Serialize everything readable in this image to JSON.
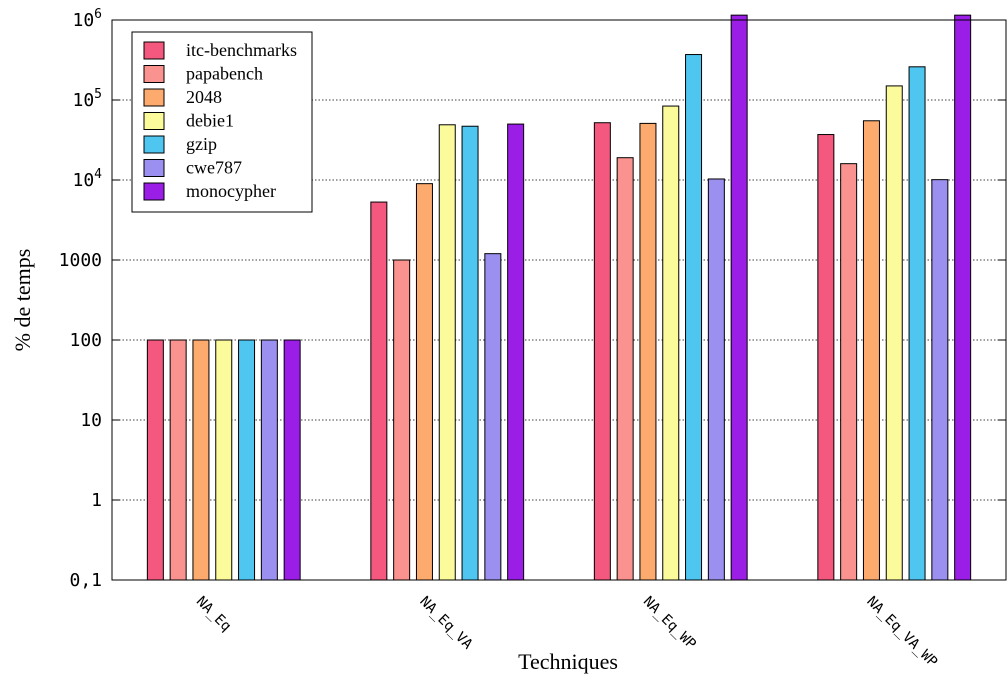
{
  "chart_data": {
    "type": "bar",
    "xlabel": "Techniques",
    "ylabel": "% de temps",
    "yscale": "log",
    "ylim": [
      0.1,
      1000000
    ],
    "yticks": [
      {
        "value": 0.1,
        "label": "0,1"
      },
      {
        "value": 1,
        "label": "1"
      },
      {
        "value": 10,
        "label": "10"
      },
      {
        "value": 100,
        "label": "100"
      },
      {
        "value": 1000,
        "label": "1000"
      },
      {
        "value": 10000,
        "label": "10",
        "exp": "4"
      },
      {
        "value": 100000,
        "label": "10",
        "exp": "5"
      },
      {
        "value": 1000000,
        "label": "10",
        "exp": "6"
      }
    ],
    "grid": "horizontal dotted",
    "legend_position": "top-left",
    "categories": [
      "NA_Eq",
      "NA_Eq_VA",
      "NA_Eq_WP",
      "NA_Eq_VA_WP"
    ],
    "series": [
      {
        "name": "itc-benchmarks",
        "color": "#f4587e",
        "values": [
          100,
          5300,
          52000,
          37000
        ]
      },
      {
        "name": "papabench",
        "color": "#fa9390",
        "values": [
          100,
          1000,
          19000,
          16000
        ]
      },
      {
        "name": "2048",
        "color": "#fdaa6e",
        "values": [
          100,
          9000,
          51000,
          55000
        ]
      },
      {
        "name": "debie1",
        "color": "#fbfb9c",
        "values": [
          100,
          49000,
          84000,
          150000
        ]
      },
      {
        "name": "gzip",
        "color": "#4ec6f0",
        "values": [
          100,
          47000,
          370000,
          260000
        ]
      },
      {
        "name": "cwe787",
        "color": "#9b8ff0",
        "values": [
          100,
          1200,
          10300,
          10100
        ]
      },
      {
        "name": "monocypher",
        "color": "#9a1ee6",
        "values": [
          100,
          50000,
          1150000,
          1150000
        ]
      }
    ]
  }
}
